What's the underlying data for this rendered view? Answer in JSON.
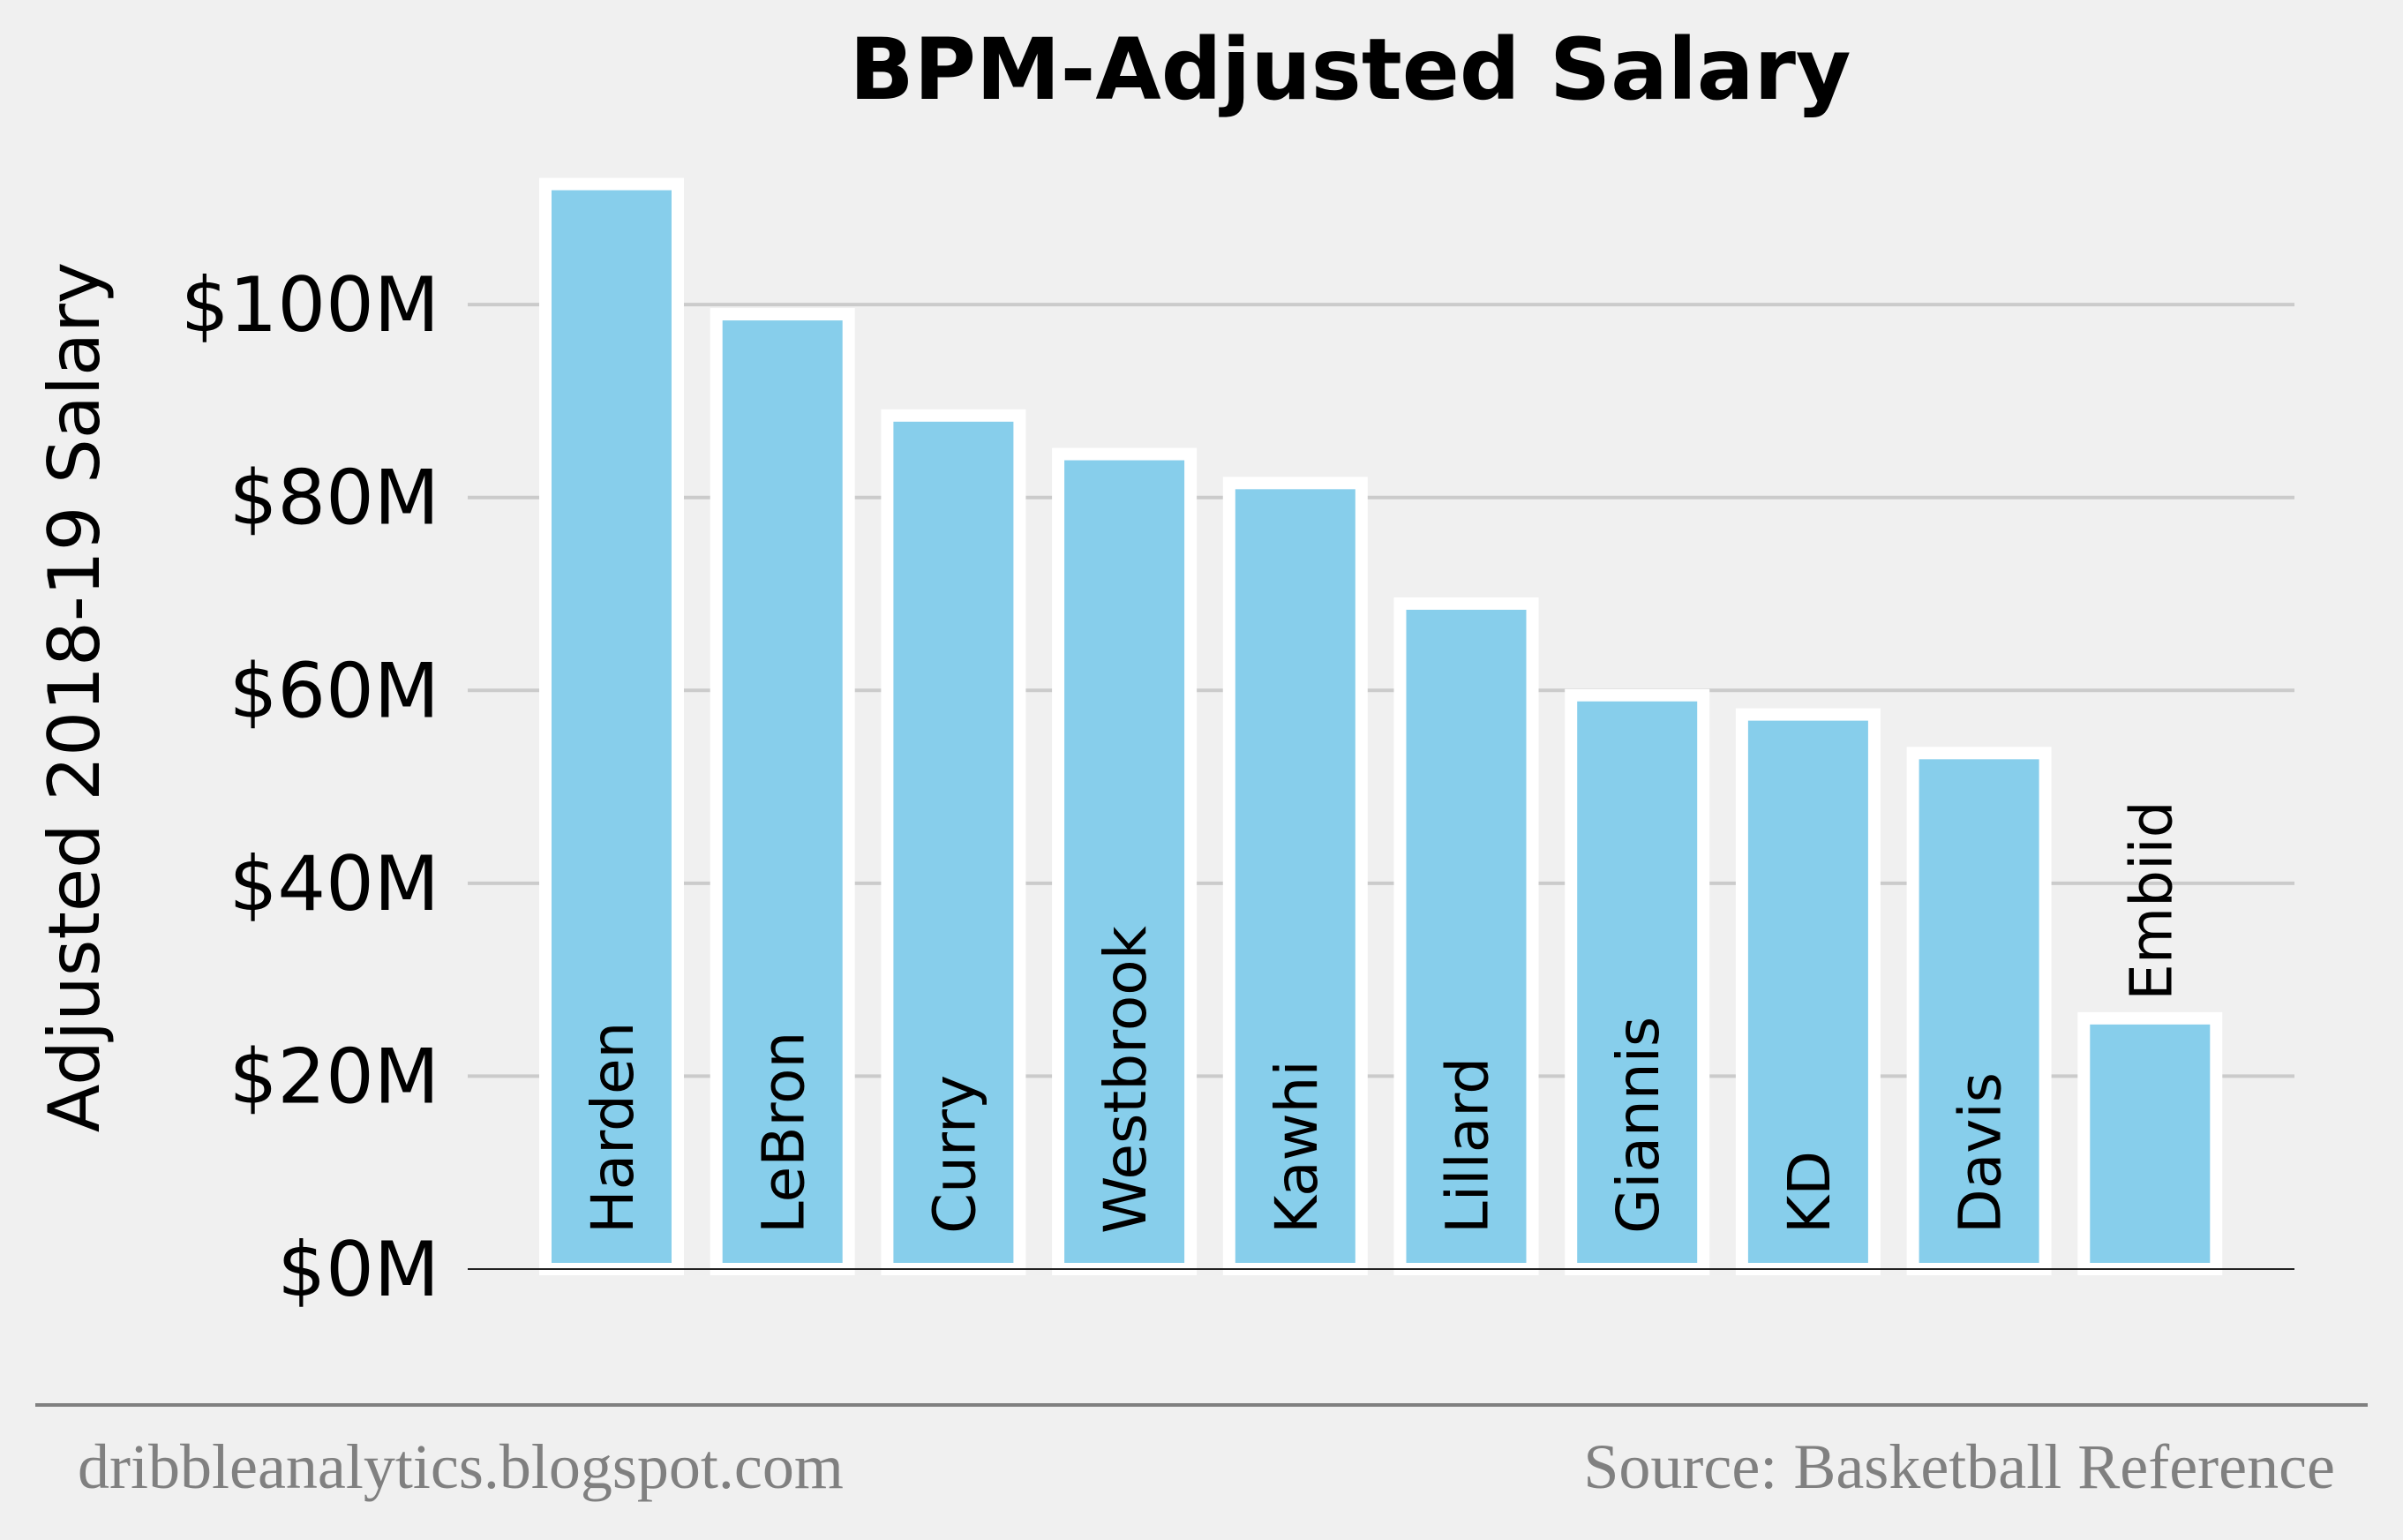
{
  "chart_data": {
    "type": "bar",
    "title": "BPM-Adjusted Salary",
    "ylabel": "Adjusted 2018-19 Salary",
    "xlabel": "",
    "categories": [
      "Harden",
      "LeBron",
      "Curry",
      "Westbrook",
      "Kawhi",
      "Lillard",
      "Giannis",
      "KD",
      "Davis",
      "Embiid"
    ],
    "values": [
      112.5,
      99,
      88.5,
      84.5,
      81.5,
      69,
      59.5,
      57.5,
      53.5,
      26
    ],
    "ylim": [
      0,
      112
    ],
    "yticks": [
      0,
      20,
      40,
      60,
      80,
      100
    ],
    "ytick_labels": [
      "$0M",
      "$20M",
      "$40M",
      "$60M",
      "$80M",
      "$100M"
    ],
    "grid": true,
    "bar_color": "#87ceeb",
    "bar_edge_color": "#ffffff",
    "background_color": "#f0f0f0",
    "grid_color": "#cbcbcb",
    "footer": {
      "left": "dribbleanalytics.blogspot.com",
      "right": "Source: Basketball Reference"
    }
  }
}
